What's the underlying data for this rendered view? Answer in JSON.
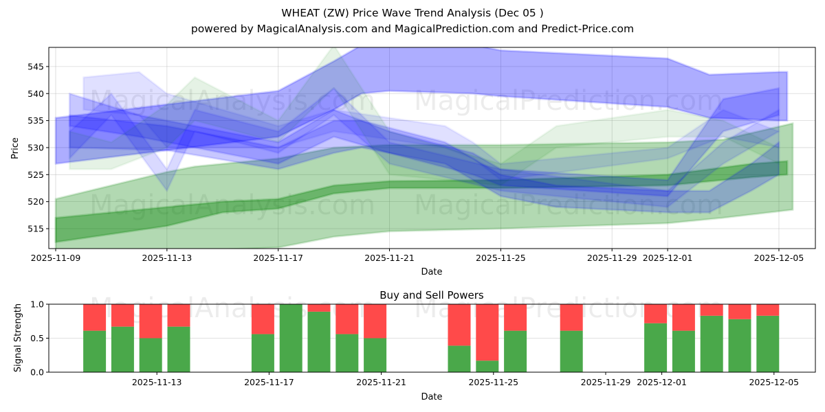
{
  "title_line1": "WHEAT (ZW) Price Wave Trend Analysis (Dec 05 )",
  "title_line2": "powered by MagicalAnalysis.com and MagicalPrediction.com and Predict-Price.com",
  "watermarks": [
    "MagicalAnalysis.com",
    "MagicalPrediction.com"
  ],
  "chart_data": [
    {
      "type": "area",
      "title": "",
      "xlabel": "Date",
      "ylabel": "Price",
      "ylim": [
        511.3,
        548.5
      ],
      "xlim": [
        "2025-11-08",
        "2025-12-06"
      ],
      "grid": true,
      "x_ticks": [
        "2025-11-09",
        "2025-11-13",
        "2025-11-17",
        "2025-11-21",
        "2025-11-25",
        "2025-11-29",
        "2025-12-01",
        "2025-12-05"
      ],
      "y_ticks": [
        515,
        520,
        525,
        530,
        535,
        540,
        545
      ],
      "colors": {
        "blue": "#0000ff",
        "green": "#008000"
      },
      "x_origin": "2025-11-09",
      "series": [
        {
          "name": "blue-upper-band",
          "color": "blue",
          "opacity": 0.32,
          "points": [
            [
              0,
              527,
              535.5
            ],
            [
              8,
              532,
              540.5
            ],
            [
              10,
              537,
              546
            ],
            [
              11,
              540,
              549
            ],
            [
              12,
              540.5,
              549
            ],
            [
              15,
              540,
              549
            ],
            [
              16,
              539.5,
              548
            ],
            [
              22,
              537.5,
              546.5
            ],
            [
              23.5,
              535.5,
              543.5
            ],
            [
              26,
              535,
              544
            ],
            [
              26.3,
              535,
              544
            ]
          ]
        },
        {
          "name": "green-wide-band",
          "color": "green",
          "opacity": 0.3,
          "points": [
            [
              0,
              509,
              520.5
            ],
            [
              4,
              511,
              525.5
            ],
            [
              5,
              511,
              526.5
            ],
            [
              8,
              511.5,
              528
            ],
            [
              10,
              513.5,
              530
            ],
            [
              12,
              514.5,
              530.5
            ],
            [
              16,
              515,
              530.5
            ],
            [
              22,
              516,
              531
            ],
            [
              24,
              517,
              531.5
            ],
            [
              26.5,
              518.5,
              534.5
            ]
          ]
        },
        {
          "name": "green-core-band",
          "color": "green",
          "opacity": 0.4,
          "points": [
            [
              0,
              512.5,
              517
            ],
            [
              4,
              515.5,
              519
            ],
            [
              6,
              518,
              520
            ],
            [
              8,
              518.7,
              520.5
            ],
            [
              10,
              521.5,
              523
            ],
            [
              12,
              522.5,
              523.8
            ],
            [
              16,
              522.5,
              524
            ],
            [
              22,
              523,
              525
            ],
            [
              25,
              524.5,
              527
            ],
            [
              26.3,
              525,
              527.5
            ]
          ]
        },
        {
          "name": "blue-mid-band-1",
          "color": "blue",
          "opacity": 0.22,
          "points": [
            [
              0.5,
              530,
              536
            ],
            [
              4,
              529.5,
              534
            ],
            [
              8,
              526,
              530
            ],
            [
              10,
              529,
              535
            ],
            [
              11,
              530,
              535
            ],
            [
              14,
              527,
              531
            ],
            [
              16,
              521,
              525
            ],
            [
              18,
              519,
              523
            ],
            [
              22,
              518,
              522
            ],
            [
              23.5,
              518,
              522
            ],
            [
              25,
              522,
              527
            ],
            [
              26,
              525,
              531
            ]
          ]
        },
        {
          "name": "blue-mid-band-2",
          "color": "blue",
          "opacity": 0.22,
          "points": [
            [
              0.5,
              534,
              540
            ],
            [
              3,
              532,
              536
            ],
            [
              8,
              527,
              531
            ],
            [
              10,
              532,
              537
            ],
            [
              12,
              529,
              533
            ],
            [
              15,
              525,
              529
            ],
            [
              16,
              523,
              526
            ],
            [
              22,
              521,
              524
            ],
            [
              24,
              533,
              539
            ],
            [
              26,
              536,
              541
            ]
          ]
        },
        {
          "name": "blue-light-band",
          "color": "blue",
          "opacity": 0.12,
          "points": [
            [
              1,
              537,
              543
            ],
            [
              3,
              536,
              544
            ],
            [
              4,
              530,
              540
            ],
            [
              8,
              530,
              534
            ],
            [
              10,
              533,
              537
            ],
            [
              14,
              530,
              534
            ],
            [
              15,
              528,
              531
            ],
            [
              16,
              524,
              527
            ],
            [
              22,
              528,
              530
            ],
            [
              24,
              532,
              537
            ],
            [
              26,
              530,
              533
            ]
          ]
        },
        {
          "name": "green-light-band",
          "color": "green",
          "opacity": 0.1,
          "points": [
            [
              0.5,
              526,
              533
            ],
            [
              2,
              526,
              531
            ],
            [
              4,
              530,
              538
            ],
            [
              5,
              535,
              543
            ],
            [
              8,
              531,
              535
            ],
            [
              10,
              541,
              549
            ],
            [
              12,
              525,
              533
            ],
            [
              16,
              523,
              527
            ],
            [
              18,
              530,
              534
            ],
            [
              22,
              532,
              537
            ],
            [
              24,
              532,
              535
            ],
            [
              26,
              527,
              530
            ]
          ]
        },
        {
          "name": "teal-zig-band",
          "color": "blue",
          "opacity": 0.15,
          "points": [
            [
              0.5,
              528,
              533
            ],
            [
              2,
              536,
              540
            ],
            [
              4,
              522,
              526
            ],
            [
              5,
              533,
              537
            ],
            [
              8,
              529,
              533
            ],
            [
              10,
              536,
              541
            ],
            [
              12,
              527,
              531
            ],
            [
              16,
              522,
              526
            ],
            [
              22,
              519,
              522
            ],
            [
              24,
              527,
              531
            ],
            [
              26,
              533,
              537
            ]
          ]
        }
      ]
    },
    {
      "type": "bar",
      "title": "Buy and Sell Powers",
      "xlabel": "Date",
      "ylabel": "Signal Strength",
      "ylim": [
        0,
        1
      ],
      "y_ticks": [
        0.0,
        0.5,
        1.0
      ],
      "y_tick_labels": [
        "0.0",
        "0.5",
        "1.0"
      ],
      "x_ticks": [
        "2025-11-13",
        "2025-11-17",
        "2025-11-21",
        "2025-11-25",
        "2025-11-29",
        "2025-12-01",
        "2025-12-05"
      ],
      "colors": {
        "buy": "#4aa84a",
        "sell": "#ff4a4a"
      },
      "categories": [
        "2025-11-11",
        "2025-11-12",
        "2025-11-13",
        "2025-11-14",
        "2025-11-17",
        "2025-11-18",
        "2025-11-19",
        "2025-11-20",
        "2025-11-21",
        "2025-11-24",
        "2025-11-25",
        "2025-11-26",
        "2025-11-28",
        "2025-12-01",
        "2025-12-02",
        "2025-12-03",
        "2025-12-04",
        "2025-12-05"
      ],
      "series": [
        {
          "name": "Buy",
          "values": [
            0.61,
            0.67,
            0.5,
            0.67,
            0.56,
            1.0,
            0.89,
            0.56,
            0.5,
            0.39,
            0.17,
            0.61,
            0.61,
            0.72,
            0.61,
            0.83,
            0.78,
            0.83
          ]
        },
        {
          "name": "Sell",
          "values": [
            0.39,
            0.33,
            0.5,
            0.33,
            0.44,
            0.0,
            0.11,
            0.44,
            0.5,
            0.61,
            0.83,
            0.39,
            0.39,
            0.28,
            0.39,
            0.17,
            0.22,
            0.17
          ]
        }
      ]
    }
  ]
}
